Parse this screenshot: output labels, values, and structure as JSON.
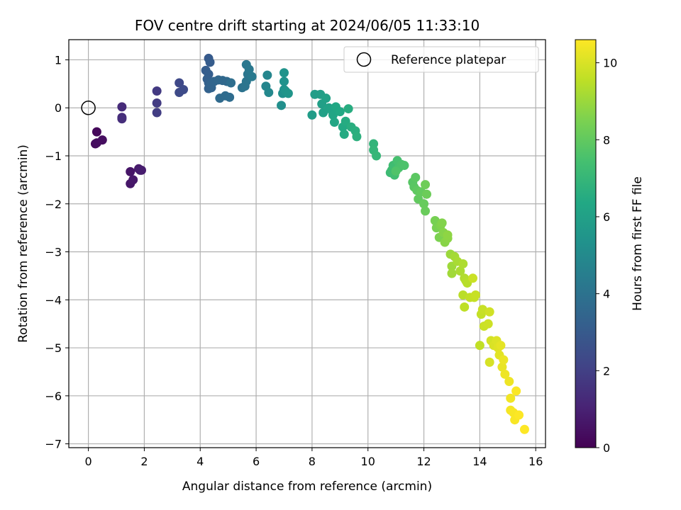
{
  "chart_data": {
    "type": "scatter",
    "title": "FOV centre drift starting at 2024/06/05 11:33:10",
    "xlabel": "Angular distance from reference (arcmin)",
    "ylabel": "Rotation from reference (arcmin)",
    "xlim": [
      -0.7,
      16.35
    ],
    "ylim": [
      -7.08,
      1.42
    ],
    "xticks": [
      0,
      2,
      4,
      6,
      8,
      10,
      12,
      14,
      16
    ],
    "yticks": [
      1,
      0,
      -1,
      -2,
      -3,
      -4,
      -5,
      -6,
      -7
    ],
    "xtick_labels": [
      "0",
      "2",
      "4",
      "6",
      "8",
      "10",
      "12",
      "14",
      "16"
    ],
    "ytick_labels": [
      "1",
      "0",
      "−1",
      "−2",
      "−3",
      "−4",
      "−5",
      "−6",
      "−7"
    ],
    "grid": true,
    "legend": {
      "placement": "top-right",
      "entries": [
        "Reference platepar"
      ]
    },
    "reference_point": {
      "x": 0,
      "y": 0,
      "label": "Reference platepar"
    },
    "colorbar": {
      "label": "Hours from first FF file",
      "colormap": "viridis",
      "range": [
        0,
        10.6
      ],
      "ticks": [
        0,
        2,
        4,
        6,
        8,
        10
      ],
      "tick_labels": [
        "0",
        "2",
        "4",
        "6",
        "8",
        "10"
      ]
    },
    "points": [
      [
        0.3,
        -0.5,
        0.2
      ],
      [
        0.25,
        -0.75,
        0.3
      ],
      [
        0.3,
        -0.73,
        0.35
      ],
      [
        0.5,
        -0.67,
        0.4
      ],
      [
        1.5,
        -1.33,
        0.6
      ],
      [
        1.5,
        -1.58,
        0.65
      ],
      [
        1.6,
        -1.5,
        0.7
      ],
      [
        1.8,
        -1.27,
        0.75
      ],
      [
        1.9,
        -1.3,
        0.8
      ],
      [
        1.85,
        -1.3,
        0.85
      ],
      [
        1.2,
        0.02,
        1.3
      ],
      [
        1.2,
        -0.2,
        1.35
      ],
      [
        1.2,
        -0.23,
        1.4
      ],
      [
        2.45,
        0.35,
        1.8
      ],
      [
        2.45,
        0.1,
        1.85
      ],
      [
        2.45,
        -0.1,
        1.9
      ],
      [
        3.25,
        0.52,
        2.3
      ],
      [
        3.25,
        0.32,
        2.35
      ],
      [
        3.4,
        0.38,
        2.4
      ],
      [
        4.3,
        1.03,
        3.0
      ],
      [
        4.35,
        0.95,
        3.05
      ],
      [
        4.2,
        0.78,
        3.1
      ],
      [
        4.3,
        0.7,
        3.15
      ],
      [
        4.25,
        0.6,
        3.2
      ],
      [
        4.3,
        0.52,
        3.25
      ],
      [
        4.3,
        0.4,
        3.3
      ],
      [
        4.4,
        0.42,
        3.35
      ],
      [
        4.4,
        0.5,
        3.4
      ],
      [
        4.5,
        0.55,
        3.45
      ],
      [
        4.65,
        0.58,
        3.5
      ],
      [
        4.8,
        0.57,
        3.55
      ],
      [
        4.95,
        0.55,
        3.6
      ],
      [
        4.7,
        0.2,
        3.65
      ],
      [
        4.9,
        0.25,
        3.7
      ],
      [
        5.05,
        0.22,
        3.75
      ],
      [
        5.1,
        0.52,
        3.8
      ],
      [
        5.5,
        0.42,
        4.0
      ],
      [
        5.6,
        0.45,
        4.05
      ],
      [
        5.65,
        0.55,
        4.1
      ],
      [
        5.7,
        0.7,
        4.15
      ],
      [
        5.65,
        0.9,
        4.2
      ],
      [
        5.75,
        0.8,
        4.25
      ],
      [
        5.85,
        0.65,
        4.3
      ],
      [
        6.35,
        0.45,
        4.8
      ],
      [
        6.4,
        0.68,
        4.85
      ],
      [
        6.45,
        0.32,
        4.9
      ],
      [
        6.9,
        0.05,
        5.2
      ],
      [
        6.95,
        0.3,
        5.25
      ],
      [
        7.0,
        0.38,
        5.3
      ],
      [
        7.0,
        0.55,
        5.35
      ],
      [
        7.0,
        0.73,
        5.4
      ],
      [
        7.05,
        0.35,
        5.45
      ],
      [
        7.15,
        0.3,
        5.5
      ],
      [
        8.0,
        -0.15,
        5.8
      ],
      [
        8.1,
        0.28,
        5.85
      ],
      [
        8.3,
        0.28,
        5.9
      ],
      [
        8.35,
        0.08,
        5.95
      ],
      [
        8.4,
        -0.1,
        6.0
      ],
      [
        8.5,
        0.2,
        6.05
      ],
      [
        8.6,
        0.0,
        6.1
      ],
      [
        8.7,
        -0.05,
        6.15
      ],
      [
        8.75,
        -0.15,
        6.2
      ],
      [
        8.8,
        -0.3,
        6.25
      ],
      [
        8.85,
        0.02,
        6.3
      ],
      [
        9.0,
        -0.08,
        6.35
      ],
      [
        9.1,
        -0.4,
        6.4
      ],
      [
        9.15,
        -0.55,
        6.45
      ],
      [
        9.2,
        -0.28,
        6.5
      ],
      [
        9.3,
        -0.02,
        6.55
      ],
      [
        9.4,
        -0.4,
        6.6
      ],
      [
        9.55,
        -0.48,
        6.65
      ],
      [
        9.6,
        -0.6,
        6.7
      ],
      [
        10.2,
        -0.75,
        6.9
      ],
      [
        10.2,
        -0.88,
        6.95
      ],
      [
        10.3,
        -1.0,
        7.0
      ],
      [
        10.8,
        -1.35,
        7.2
      ],
      [
        10.85,
        -1.3,
        7.25
      ],
      [
        10.9,
        -1.2,
        7.3
      ],
      [
        10.95,
        -1.4,
        7.35
      ],
      [
        11.0,
        -1.3,
        7.4
      ],
      [
        11.05,
        -1.1,
        7.45
      ],
      [
        11.1,
        -1.25,
        7.5
      ],
      [
        11.2,
        -1.18,
        7.55
      ],
      [
        11.3,
        -1.2,
        7.6
      ],
      [
        11.0,
        -1.32,
        7.65
      ],
      [
        11.6,
        -1.55,
        7.8
      ],
      [
        11.65,
        -1.65,
        7.85
      ],
      [
        11.7,
        -1.45,
        7.9
      ],
      [
        11.75,
        -1.72,
        7.95
      ],
      [
        11.8,
        -1.9,
        8.0
      ],
      [
        11.9,
        -1.75,
        8.05
      ],
      [
        12.0,
        -2.0,
        8.1
      ],
      [
        12.05,
        -2.15,
        8.15
      ],
      [
        12.1,
        -1.8,
        8.2
      ],
      [
        12.05,
        -1.6,
        8.25
      ],
      [
        12.4,
        -2.35,
        8.4
      ],
      [
        12.45,
        -2.5,
        8.45
      ],
      [
        12.55,
        -2.7,
        8.5
      ],
      [
        12.6,
        -2.45,
        8.55
      ],
      [
        12.65,
        -2.4,
        8.6
      ],
      [
        12.7,
        -2.6,
        8.65
      ],
      [
        12.75,
        -2.8,
        8.7
      ],
      [
        12.85,
        -2.72,
        8.75
      ],
      [
        12.85,
        -2.65,
        8.8
      ],
      [
        12.95,
        -3.05,
        9.0
      ],
      [
        13.0,
        -3.3,
        9.05
      ],
      [
        13.0,
        -3.45,
        9.1
      ],
      [
        13.1,
        -3.1,
        9.15
      ],
      [
        13.2,
        -3.2,
        9.2
      ],
      [
        13.3,
        -3.4,
        9.25
      ],
      [
        13.4,
        -3.25,
        9.3
      ],
      [
        13.45,
        -3.55,
        9.35
      ],
      [
        13.5,
        -3.6,
        9.4
      ],
      [
        13.55,
        -3.65,
        9.45
      ],
      [
        13.4,
        -3.9,
        9.5
      ],
      [
        13.45,
        -4.15,
        9.55
      ],
      [
        13.65,
        -3.95,
        9.6
      ],
      [
        13.8,
        -3.95,
        9.65
      ],
      [
        13.85,
        -3.9,
        9.7
      ],
      [
        13.75,
        -3.55,
        9.75
      ],
      [
        14.0,
        -4.95,
        9.6
      ],
      [
        14.05,
        -4.3,
        9.65
      ],
      [
        14.1,
        -4.2,
        9.7
      ],
      [
        14.15,
        -4.55,
        9.75
      ],
      [
        14.3,
        -4.5,
        9.8
      ],
      [
        14.35,
        -4.25,
        9.85
      ],
      [
        14.4,
        -4.85,
        9.9
      ],
      [
        14.35,
        -5.3,
        9.95
      ],
      [
        14.5,
        -4.95,
        10.0
      ],
      [
        14.6,
        -4.85,
        10.05
      ],
      [
        14.65,
        -5.0,
        10.1
      ],
      [
        14.7,
        -5.15,
        10.15
      ],
      [
        14.75,
        -4.95,
        10.2
      ],
      [
        14.8,
        -5.4,
        10.25
      ],
      [
        14.85,
        -5.25,
        10.3
      ],
      [
        14.9,
        -5.55,
        10.35
      ],
      [
        15.05,
        -5.7,
        10.35
      ],
      [
        15.1,
        -6.05,
        10.4
      ],
      [
        15.1,
        -6.3,
        10.45
      ],
      [
        15.2,
        -6.35,
        10.5
      ],
      [
        15.25,
        -6.5,
        10.52
      ],
      [
        15.3,
        -5.9,
        10.55
      ],
      [
        15.4,
        -6.4,
        10.58
      ],
      [
        15.6,
        -6.7,
        10.6
      ]
    ]
  }
}
